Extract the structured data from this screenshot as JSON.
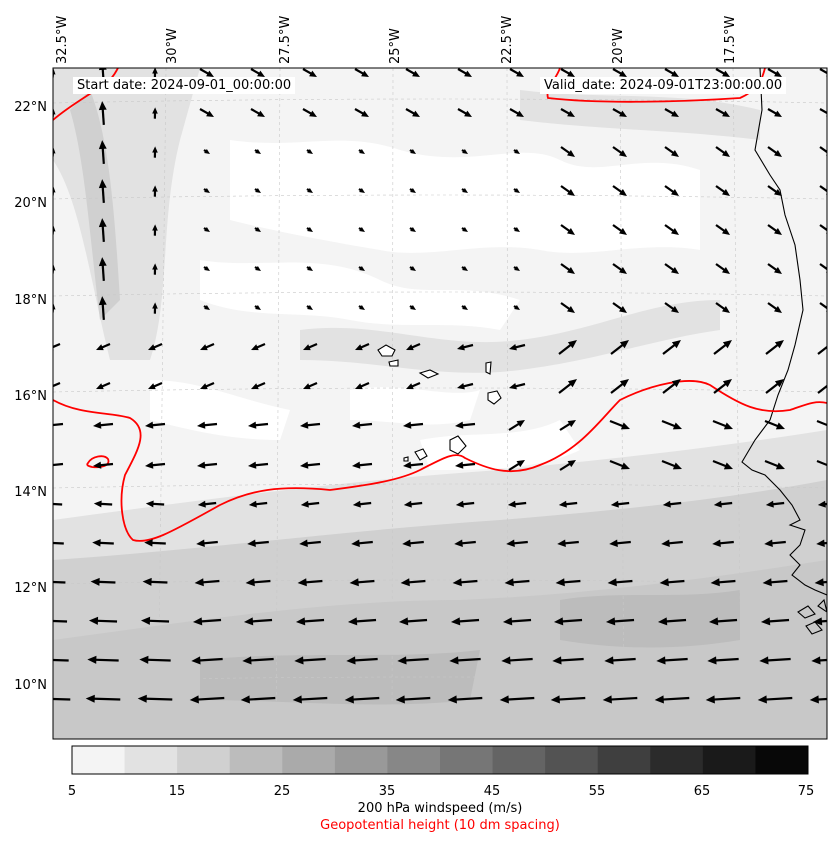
{
  "map": {
    "start_date": "Start date: 2024-09-01_00:00:00",
    "valid_date": "Valid_date: 2024-09-01T23:00:00.00",
    "lon_labels": [
      "32.5°W",
      "30°W",
      "27.5°W",
      "25°W",
      "22.5°W",
      "20°W",
      "17.5°W"
    ],
    "lat_labels": [
      "22°N",
      "20°N",
      "18°N",
      "16°N",
      "14°N",
      "12°N",
      "10°N"
    ],
    "contour_color": "#ff0000",
    "vector_color": "#000000"
  },
  "colorbar": {
    "ticks": [
      "5",
      "15",
      "25",
      "35",
      "45",
      "55",
      "65",
      "75"
    ],
    "colors": [
      "#f4f4f4",
      "#e2e2e2",
      "#d0d0d0",
      "#bcbcbc",
      "#aaaaaa",
      "#999999",
      "#878787",
      "#767676",
      "#646464",
      "#535353",
      "#3f3f3f",
      "#2b2b2b",
      "#1a1a1a",
      "#080808"
    ],
    "label": "200 hPa windspeed (m/s)",
    "sublabel": "Geopotential height (10 dm spacing)",
    "sublabel_color": "#ff0000"
  }
}
